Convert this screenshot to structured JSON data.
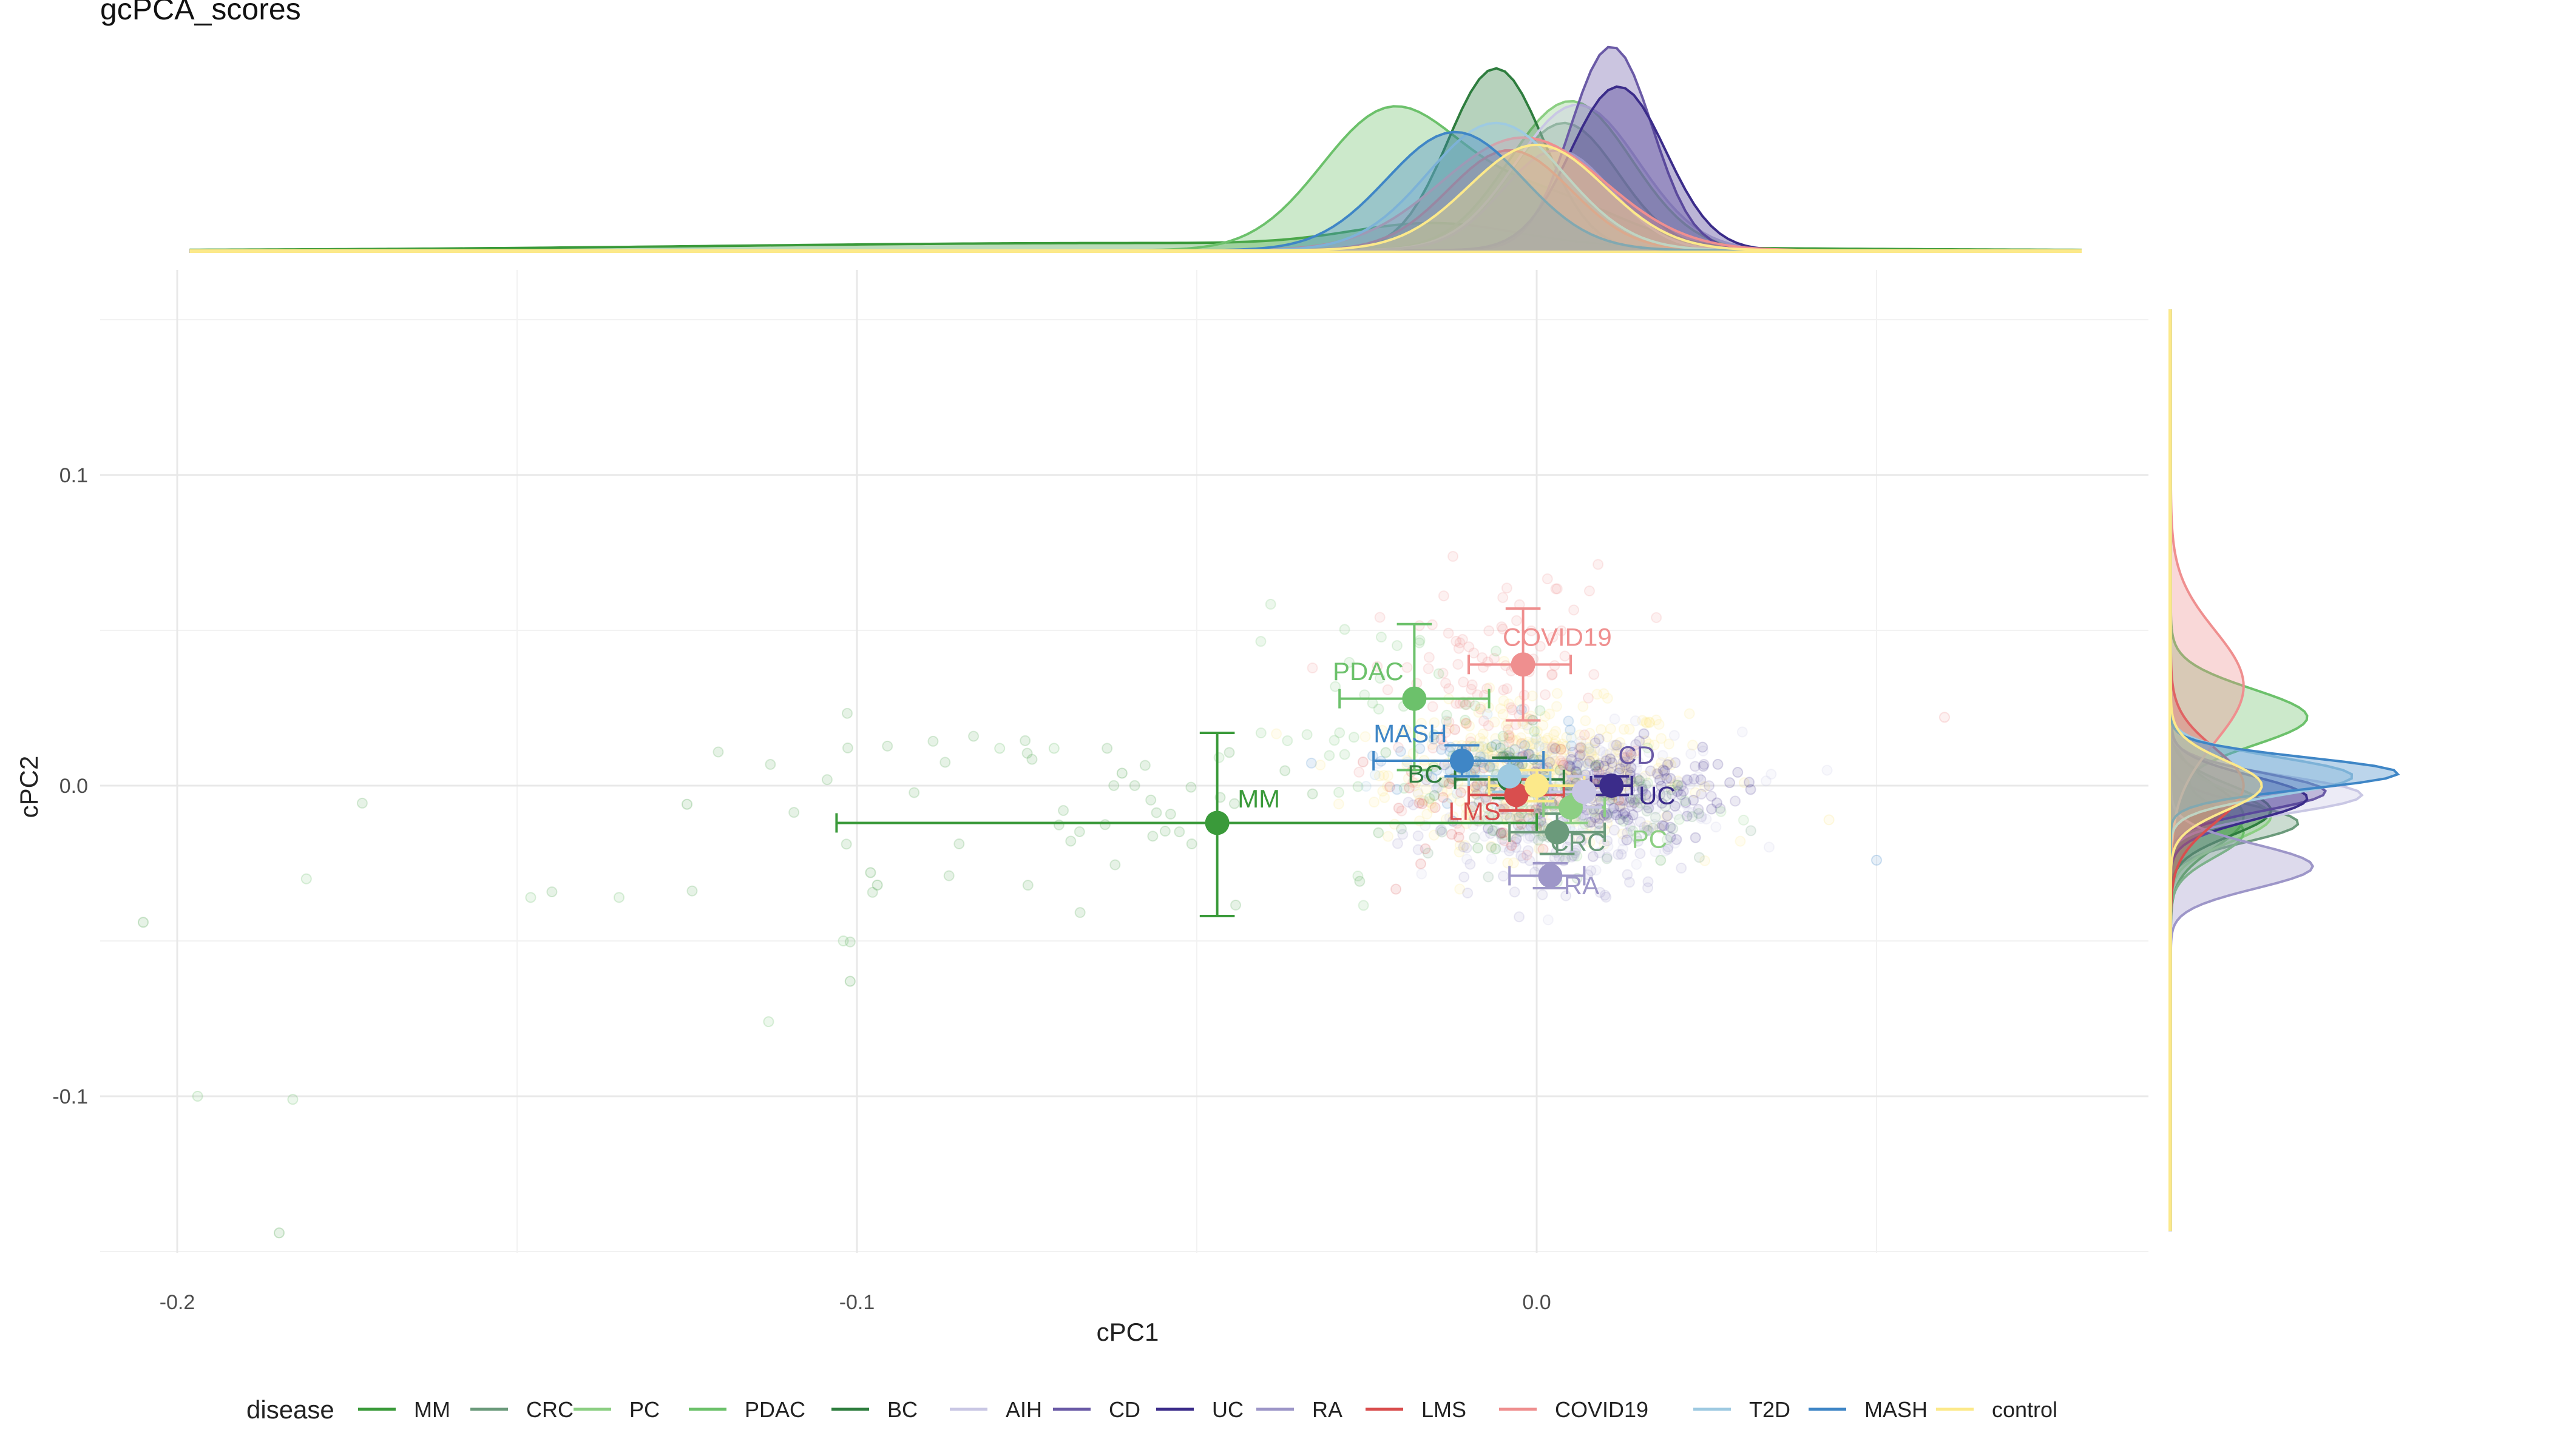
{
  "title": "gcPCA_scores",
  "chart_data": {
    "type": "scatter",
    "title": "gcPCA_scores",
    "xlabel": "cPC1",
    "ylabel": "cPC2",
    "xlim": [
      -0.21,
      0.09
    ],
    "ylim": [
      -0.15,
      0.15
    ],
    "x_ticks": [
      -0.2,
      -0.1,
      0.0
    ],
    "x_tick_labels": [
      "-0.2",
      "-0.1",
      "0.0"
    ],
    "y_ticks": [
      0.1,
      0.0,
      -0.1
    ],
    "y_tick_labels": [
      "0.1",
      "0.0",
      "-0.1"
    ],
    "grid": true,
    "legend": {
      "title": "disease",
      "position": "bottom"
    },
    "marginal_density": {
      "top": "cPC1",
      "right": "cPC2"
    },
    "series": [
      {
        "name": "MM",
        "color": "#3a9a3a",
        "mean": [
          -0.047,
          -0.012
        ],
        "err_x": [
          -0.103,
          0.0
        ],
        "err_y": [
          -0.042,
          0.017
        ]
      },
      {
        "name": "CRC",
        "color": "#6b9a7b",
        "mean": [
          0.003,
          -0.015
        ],
        "err_x": [
          -0.004,
          0.01
        ],
        "err_y": [
          -0.022,
          -0.009
        ]
      },
      {
        "name": "PC",
        "color": "#8ccf83",
        "mean": [
          0.005,
          -0.007
        ],
        "err_x": [
          0.001,
          0.01
        ],
        "err_y": [
          -0.012,
          -0.002
        ]
      },
      {
        "name": "PDAC",
        "color": "#6cc16b",
        "mean": [
          -0.018,
          0.028
        ],
        "err_x": [
          -0.029,
          -0.007
        ],
        "err_y": [
          0.005,
          0.052
        ]
      },
      {
        "name": "BC",
        "color": "#2e7d3e",
        "mean": [
          -0.004,
          0.002
        ],
        "err_x": [
          -0.012,
          0.004
        ],
        "err_y": [
          -0.004,
          0.009
        ]
      },
      {
        "name": "AIH",
        "color": "#c9c7e4",
        "mean": [
          0.007,
          -0.002
        ],
        "err_x": [
          0.002,
          0.012
        ],
        "err_y": [
          -0.007,
          0.003
        ]
      },
      {
        "name": "CD",
        "color": "#6a5aa6",
        "mean": [
          0.011,
          0.0
        ],
        "err_x": [
          0.008,
          0.014
        ],
        "err_y": [
          -0.003,
          0.003
        ]
      },
      {
        "name": "UC",
        "color": "#3b2c8a",
        "mean": [
          0.011,
          0.0
        ],
        "err_x": [
          0.008,
          0.014
        ],
        "err_y": [
          -0.003,
          0.003
        ]
      },
      {
        "name": "RA",
        "color": "#9d96c8",
        "mean": [
          0.002,
          -0.029
        ],
        "err_x": [
          -0.004,
          0.007
        ],
        "err_y": [
          -0.033,
          -0.025
        ]
      },
      {
        "name": "LMS",
        "color": "#d94e4e",
        "mean": [
          -0.003,
          -0.003
        ],
        "err_x": [
          -0.01,
          0.004
        ],
        "err_y": [
          -0.008,
          0.002
        ]
      },
      {
        "name": "COVID19",
        "color": "#ef8f8f",
        "mean": [
          -0.002,
          0.039
        ],
        "err_x": [
          -0.01,
          0.005
        ],
        "err_y": [
          0.021,
          0.057
        ]
      },
      {
        "name": "T2D",
        "color": "#9ecae1",
        "mean": [
          -0.004,
          0.003
        ],
        "err_x": [
          -0.01,
          0.002
        ],
        "err_y": [
          -0.002,
          0.008
        ]
      },
      {
        "name": "MASH",
        "color": "#3f86c6",
        "mean": [
          -0.011,
          0.008
        ],
        "err_x": [
          -0.024,
          0.001
        ],
        "err_y": [
          0.003,
          0.013
        ]
      },
      {
        "name": "control",
        "color": "#fce98a",
        "mean": [
          0.0,
          0.0
        ],
        "err_x": [
          -0.007,
          0.007
        ],
        "err_y": [
          -0.005,
          0.005
        ]
      }
    ],
    "annotations": [
      {
        "label": "MM",
        "x": -0.044,
        "y": -0.007,
        "series": "MM"
      },
      {
        "label": "PDAC",
        "x": -0.03,
        "y": 0.034,
        "series": "PDAC"
      },
      {
        "label": "COVID19",
        "x": -0.005,
        "y": 0.045,
        "series": "COVID19"
      },
      {
        "label": "MASH",
        "x": -0.024,
        "y": 0.014,
        "series": "MASH"
      },
      {
        "label": "BC",
        "x": -0.019,
        "y": 0.001,
        "series": "BC"
      },
      {
        "label": "LMS",
        "x": -0.013,
        "y": -0.011,
        "series": "LMS"
      },
      {
        "label": "CD",
        "x": 0.012,
        "y": 0.007,
        "series": "CD"
      },
      {
        "label": "UC",
        "x": 0.015,
        "y": -0.006,
        "series": "UC"
      },
      {
        "label": "CRC",
        "x": 0.002,
        "y": -0.021,
        "series": "CRC"
      },
      {
        "label": "PC",
        "x": 0.014,
        "y": -0.02,
        "series": "PC"
      },
      {
        "label": "RA",
        "x": 0.004,
        "y": -0.035,
        "series": "RA"
      }
    ]
  }
}
